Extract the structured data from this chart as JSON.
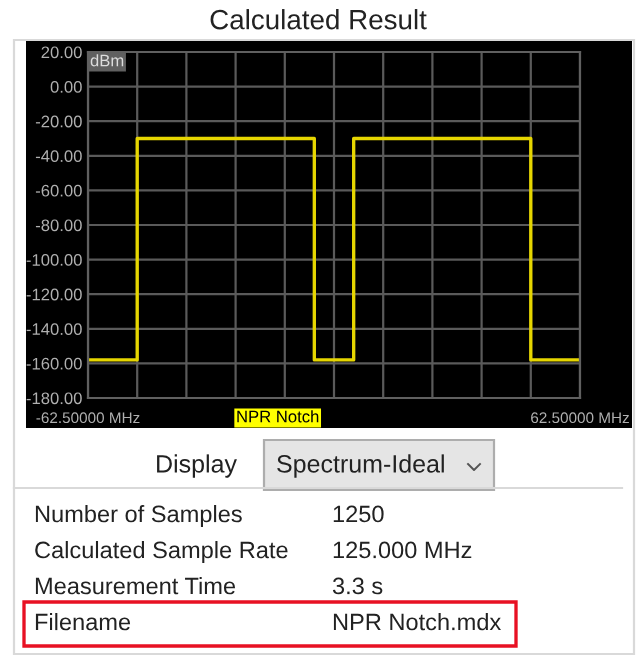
{
  "chart_data": {
    "type": "line",
    "title": "Calculated Result",
    "x": [
      -62.5,
      -50,
      -50,
      -50,
      -5,
      -5,
      5,
      5,
      50,
      50,
      50,
      62.5
    ],
    "series": [
      {
        "color": "#e6d600",
        "values": [
          -158,
          -158,
          -94,
          -30,
          -30,
          -158,
          -158,
          -30,
          -30,
          -94,
          -158,
          -158
        ]
      }
    ],
    "xlim": [
      -62.5,
      62.5
    ],
    "xticks": [
      {
        "value": -62.5,
        "label": "-62.50000 MHz"
      },
      {
        "value": -50,
        "label": null
      },
      {
        "value": -37.5,
        "label": null
      },
      {
        "value": -25,
        "label": null
      },
      {
        "value": -12.5,
        "label": null
      },
      {
        "value": 0,
        "label": null
      },
      {
        "value": 12.5,
        "label": null
      },
      {
        "value": 25,
        "label": null
      },
      {
        "value": 37.5,
        "label": null
      },
      {
        "value": 50,
        "label": null
      },
      {
        "value": 62.5,
        "label": "62.50000 MHz"
      }
    ],
    "ylim": [
      -180,
      20
    ],
    "yticks": [
      {
        "value": 20,
        "label": "20.00"
      },
      {
        "value": 0,
        "label": "0.00"
      },
      {
        "value": -20,
        "label": "-20.00"
      },
      {
        "value": -40,
        "label": "-40.00"
      },
      {
        "value": -60,
        "label": "-60.00"
      },
      {
        "value": -80,
        "label": "-80.00"
      },
      {
        "value": -100,
        "label": "-100.00"
      },
      {
        "value": -120,
        "label": "-120.00"
      },
      {
        "value": -140,
        "label": "-140.00"
      },
      {
        "value": -160,
        "label": "-160.00"
      },
      {
        "value": -180,
        "label": "-180.00"
      }
    ],
    "grid": true,
    "marker": "none",
    "line_style": "solid",
    "annotations": [
      "dBm",
      "NPR Notch",
      "Display",
      "Spectrum-Ideal",
      "Number of Samples",
      "1250",
      "Calculated Sample Rate",
      "125.000 MHz",
      "Measurement Time",
      "3.3 s",
      "Filename",
      "NPR Notch.mdx"
    ]
  }
}
